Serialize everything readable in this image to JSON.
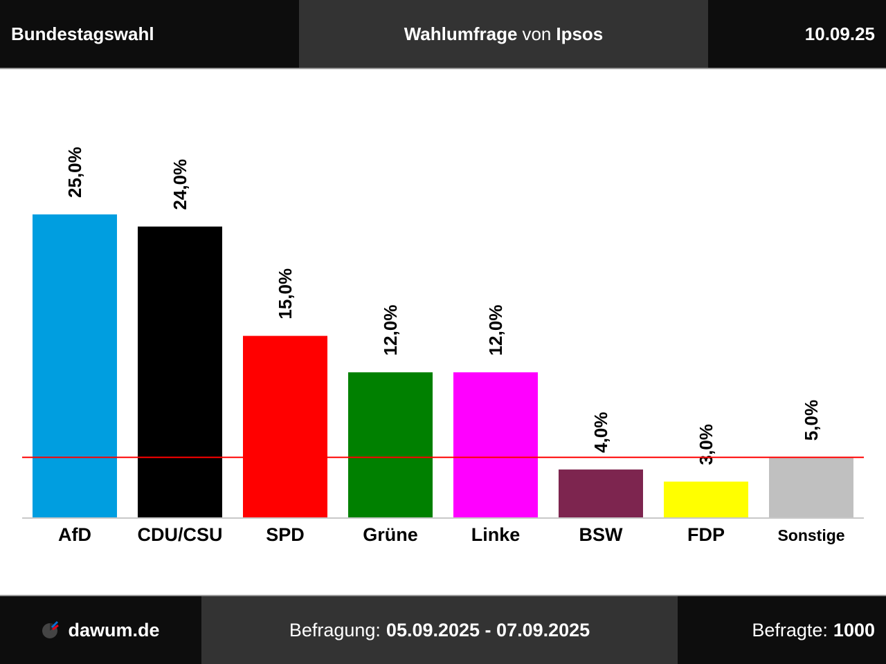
{
  "header": {
    "left": "Bundestagswahl",
    "center_title": "Wahlumfrage",
    "center_sep": "von",
    "center_institute": "Ipsos",
    "date": "10.09.25"
  },
  "footer": {
    "brand": "dawum.de",
    "period_label": "Befragung:",
    "period_value": "05.09.2025 - 07.09.2025",
    "sample_label": "Befragte:",
    "sample_value": "1000"
  },
  "chart_data": {
    "type": "bar",
    "categories": [
      "AfD",
      "CDU/CSU",
      "SPD",
      "Grüne",
      "Linke",
      "BSW",
      "FDP",
      "Sonstige"
    ],
    "values": [
      25.0,
      24.0,
      15.0,
      12.0,
      12.0,
      4.0,
      3.0,
      5.0
    ],
    "value_labels": [
      "25,0%",
      "24,0%",
      "15,0%",
      "12,0%",
      "12,0%",
      "4,0%",
      "3,0%",
      "5,0%"
    ],
    "colors": [
      "#009ee0",
      "#000000",
      "#ff0000",
      "#008000",
      "#ff00ff",
      "#7d254f",
      "#ffff00",
      "#c0c0c0"
    ],
    "threshold": 5,
    "threshold_color": "#ff0000",
    "title": "",
    "xlabel": "",
    "ylabel": "",
    "ylim": [
      0,
      25
    ],
    "grid": false
  }
}
